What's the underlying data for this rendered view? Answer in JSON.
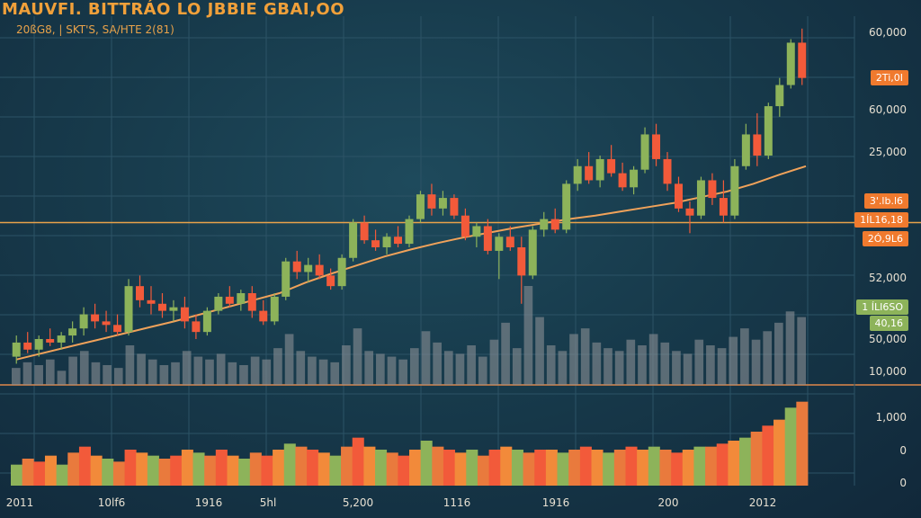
{
  "header": {
    "title": "MAUVFI. BITTRÁO LO JBBIE GBAI,OO",
    "subtitle": "20ßG8, | SKT'S,  SA/HTE  2(81)"
  },
  "colors": {
    "background": "#173a4b",
    "up": "#8db35a",
    "down": "#f25a3a",
    "moving_average": "#f0a25a",
    "level_line": "#e8a24a",
    "volume": "#8a8f94",
    "tag_orange": "#f07a2e",
    "tag_green": "#8db35a"
  },
  "chart_data": {
    "type": "candlestick",
    "title": "MAUVFI. BITTRÁO LO JBBIE GBAI,OO",
    "x_ticks": [
      "2011",
      "10lf6",
      "1916",
      "5hl",
      "5,200",
      "1116",
      "1916",
      "200",
      "2012"
    ],
    "price_axis_ticks": [
      "60,000",
      "60,000",
      "25,000",
      "52,000",
      "50,000",
      "10,000"
    ],
    "lower_axis_ticks": [
      "1,000",
      "0",
      "0"
    ],
    "price_tags": [
      {
        "label": "2Ti,0I",
        "color": "orange"
      },
      {
        "label": "3'.lb.l6",
        "color": "orange"
      },
      {
        "label": "1ÍL16,18",
        "color": "orange"
      },
      {
        "label": "2Ó,9L6",
        "color": "orange"
      },
      {
        "label": "1 ÍLI6SO",
        "color": "green"
      },
      {
        "label": "40,16",
        "color": "green"
      }
    ],
    "price_range": [
      10000,
      62000
    ],
    "horizontal_level": 33000,
    "moving_average": [
      13600,
      14500,
      15400,
      16300,
      17200,
      18100,
      19000,
      20000,
      21000,
      22000,
      23000,
      24500,
      25800,
      27000,
      28200,
      29200,
      30100,
      30900,
      31600,
      32300,
      32900,
      33500,
      34000,
      34600,
      35200,
      35800,
      36600,
      37400,
      38500,
      39800,
      41000
    ],
    "candles": [
      {
        "o": 14000,
        "h": 17000,
        "l": 13000,
        "c": 16000
      },
      {
        "o": 16000,
        "h": 17500,
        "l": 14500,
        "c": 15000
      },
      {
        "o": 15000,
        "h": 17000,
        "l": 14000,
        "c": 16500
      },
      {
        "o": 16500,
        "h": 18000,
        "l": 15500,
        "c": 16000
      },
      {
        "o": 16000,
        "h": 17500,
        "l": 15000,
        "c": 17000
      },
      {
        "o": 17000,
        "h": 19000,
        "l": 16000,
        "c": 18000
      },
      {
        "o": 18000,
        "h": 21000,
        "l": 17000,
        "c": 20000
      },
      {
        "o": 20000,
        "h": 21500,
        "l": 18000,
        "c": 19000
      },
      {
        "o": 19000,
        "h": 20500,
        "l": 17500,
        "c": 18500
      },
      {
        "o": 18500,
        "h": 20000,
        "l": 17000,
        "c": 17500
      },
      {
        "o": 17500,
        "h": 25000,
        "l": 17000,
        "c": 24000
      },
      {
        "o": 24000,
        "h": 25500,
        "l": 21000,
        "c": 22000
      },
      {
        "o": 22000,
        "h": 24000,
        "l": 20000,
        "c": 21500
      },
      {
        "o": 21500,
        "h": 23000,
        "l": 19500,
        "c": 20500
      },
      {
        "o": 20500,
        "h": 22000,
        "l": 19000,
        "c": 21000
      },
      {
        "o": 21000,
        "h": 22500,
        "l": 18000,
        "c": 19000
      },
      {
        "o": 19000,
        "h": 20000,
        "l": 16500,
        "c": 17500
      },
      {
        "o": 17500,
        "h": 21000,
        "l": 17000,
        "c": 20500
      },
      {
        "o": 20500,
        "h": 23000,
        "l": 20000,
        "c": 22500
      },
      {
        "o": 22500,
        "h": 24000,
        "l": 21000,
        "c": 21500
      },
      {
        "o": 21500,
        "h": 23500,
        "l": 20500,
        "c": 23000
      },
      {
        "o": 23000,
        "h": 24000,
        "l": 19500,
        "c": 20500
      },
      {
        "o": 20500,
        "h": 22000,
        "l": 18500,
        "c": 19000
      },
      {
        "o": 19000,
        "h": 23000,
        "l": 18500,
        "c": 22500
      },
      {
        "o": 22500,
        "h": 28000,
        "l": 22000,
        "c": 27500
      },
      {
        "o": 27500,
        "h": 29000,
        "l": 25000,
        "c": 26000
      },
      {
        "o": 26000,
        "h": 28000,
        "l": 24500,
        "c": 27000
      },
      {
        "o": 27000,
        "h": 28500,
        "l": 25000,
        "c": 25500
      },
      {
        "o": 25500,
        "h": 26500,
        "l": 23500,
        "c": 24000
      },
      {
        "o": 24000,
        "h": 28500,
        "l": 23500,
        "c": 28000
      },
      {
        "o": 28000,
        "h": 33500,
        "l": 27500,
        "c": 33000
      },
      {
        "o": 33000,
        "h": 34000,
        "l": 30000,
        "c": 30500
      },
      {
        "o": 30500,
        "h": 32000,
        "l": 29000,
        "c": 29500
      },
      {
        "o": 29500,
        "h": 31500,
        "l": 28500,
        "c": 31000
      },
      {
        "o": 31000,
        "h": 32500,
        "l": 29500,
        "c": 30000
      },
      {
        "o": 30000,
        "h": 34000,
        "l": 29500,
        "c": 33500
      },
      {
        "o": 33500,
        "h": 37500,
        "l": 33000,
        "c": 37000
      },
      {
        "o": 37000,
        "h": 38500,
        "l": 34000,
        "c": 35000
      },
      {
        "o": 35000,
        "h": 37500,
        "l": 34000,
        "c": 36500
      },
      {
        "o": 36500,
        "h": 37000,
        "l": 33500,
        "c": 34000
      },
      {
        "o": 34000,
        "h": 35000,
        "l": 30500,
        "c": 31000
      },
      {
        "o": 31000,
        "h": 33000,
        "l": 29500,
        "c": 32500
      },
      {
        "o": 32500,
        "h": 33500,
        "l": 28500,
        "c": 29000
      },
      {
        "o": 29000,
        "h": 31500,
        "l": 25000,
        "c": 31000
      },
      {
        "o": 31000,
        "h": 32500,
        "l": 29000,
        "c": 29500
      },
      {
        "o": 29500,
        "h": 31000,
        "l": 21500,
        "c": 25500
      },
      {
        "o": 25500,
        "h": 32500,
        "l": 25000,
        "c": 32000
      },
      {
        "o": 32000,
        "h": 34500,
        "l": 31000,
        "c": 33500
      },
      {
        "o": 33500,
        "h": 35000,
        "l": 31500,
        "c": 32000
      },
      {
        "o": 32000,
        "h": 39000,
        "l": 31500,
        "c": 38500
      },
      {
        "o": 38500,
        "h": 42000,
        "l": 37500,
        "c": 41000
      },
      {
        "o": 41000,
        "h": 43000,
        "l": 38500,
        "c": 39000
      },
      {
        "o": 39000,
        "h": 42500,
        "l": 38000,
        "c": 42000
      },
      {
        "o": 42000,
        "h": 44000,
        "l": 39500,
        "c": 40000
      },
      {
        "o": 40000,
        "h": 41500,
        "l": 37500,
        "c": 38000
      },
      {
        "o": 38000,
        "h": 41000,
        "l": 37000,
        "c": 40500
      },
      {
        "o": 40500,
        "h": 46500,
        "l": 40000,
        "c": 45500
      },
      {
        "o": 45500,
        "h": 47000,
        "l": 41000,
        "c": 42000
      },
      {
        "o": 42000,
        "h": 43000,
        "l": 37500,
        "c": 38500
      },
      {
        "o": 38500,
        "h": 39500,
        "l": 34500,
        "c": 35000
      },
      {
        "o": 35000,
        "h": 36000,
        "l": 31500,
        "c": 34000
      },
      {
        "o": 34000,
        "h": 39500,
        "l": 33500,
        "c": 39000
      },
      {
        "o": 39000,
        "h": 40000,
        "l": 35500,
        "c": 36500
      },
      {
        "o": 36500,
        "h": 39000,
        "l": 33000,
        "c": 34000
      },
      {
        "o": 34000,
        "h": 42000,
        "l": 33500,
        "c": 41000
      },
      {
        "o": 41000,
        "h": 47000,
        "l": 40500,
        "c": 45500
      },
      {
        "o": 45500,
        "h": 48500,
        "l": 41000,
        "c": 42500
      },
      {
        "o": 42500,
        "h": 50000,
        "l": 42000,
        "c": 49500
      },
      {
        "o": 49500,
        "h": 53500,
        "l": 48000,
        "c": 52500
      },
      {
        "o": 52500,
        "h": 59000,
        "l": 52000,
        "c": 58500
      },
      {
        "o": 58500,
        "h": 60500,
        "l": 52500,
        "c": 53500
      }
    ],
    "volume": [
      6,
      8,
      7,
      9,
      5,
      10,
      12,
      8,
      7,
      6,
      14,
      11,
      9,
      7,
      8,
      12,
      10,
      9,
      11,
      8,
      7,
      10,
      9,
      13,
      18,
      12,
      10,
      9,
      8,
      14,
      20,
      12,
      11,
      10,
      9,
      13,
      19,
      15,
      12,
      11,
      14,
      10,
      16,
      22,
      13,
      35,
      24,
      14,
      12,
      18,
      20,
      15,
      13,
      12,
      16,
      14,
      18,
      15,
      12,
      11,
      16,
      14,
      13,
      17,
      20,
      16,
      19,
      22,
      26,
      24
    ],
    "lower_series": [
      7,
      9,
      8,
      10,
      7,
      11,
      13,
      10,
      9,
      8,
      12,
      11,
      10,
      9,
      10,
      12,
      11,
      10,
      12,
      10,
      9,
      11,
      10,
      12,
      14,
      13,
      12,
      11,
      10,
      13,
      16,
      13,
      12,
      11,
      10,
      12,
      15,
      13,
      12,
      11,
      12,
      10,
      12,
      13,
      12,
      11,
      12,
      12,
      11,
      12,
      13,
      12,
      11,
      12,
      13,
      12,
      13,
      12,
      11,
      12,
      13,
      13,
      14,
      15,
      16,
      18,
      20,
      22,
      26,
      28
    ],
    "lower_range": [
      0,
      30
    ]
  }
}
